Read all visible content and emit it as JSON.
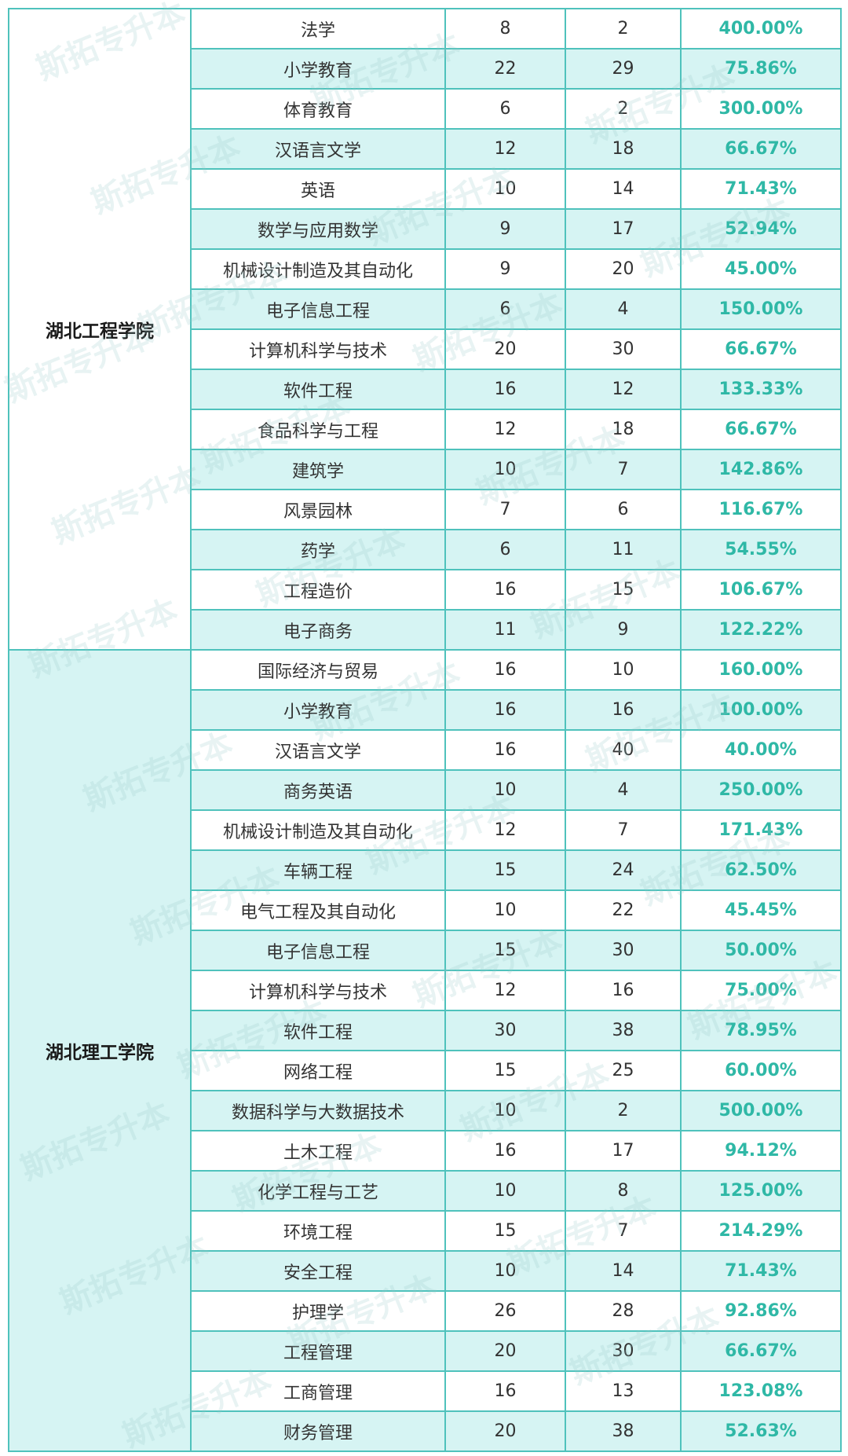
{
  "watermark": "斯拓专升本",
  "schools": [
    {
      "name": "湖北工程学院",
      "rows": [
        {
          "major": "法学",
          "a": "8",
          "b": "2",
          "pct": "400.00%"
        },
        {
          "major": "小学教育",
          "a": "22",
          "b": "29",
          "pct": "75.86%"
        },
        {
          "major": "体育教育",
          "a": "6",
          "b": "2",
          "pct": "300.00%"
        },
        {
          "major": "汉语言文学",
          "a": "12",
          "b": "18",
          "pct": "66.67%"
        },
        {
          "major": "英语",
          "a": "10",
          "b": "14",
          "pct": "71.43%"
        },
        {
          "major": "数学与应用数学",
          "a": "9",
          "b": "17",
          "pct": "52.94%"
        },
        {
          "major": "机械设计制造及其自动化",
          "a": "9",
          "b": "20",
          "pct": "45.00%"
        },
        {
          "major": "电子信息工程",
          "a": "6",
          "b": "4",
          "pct": "150.00%"
        },
        {
          "major": "计算机科学与技术",
          "a": "20",
          "b": "30",
          "pct": "66.67%"
        },
        {
          "major": "软件工程",
          "a": "16",
          "b": "12",
          "pct": "133.33%"
        },
        {
          "major": "食品科学与工程",
          "a": "12",
          "b": "18",
          "pct": "66.67%"
        },
        {
          "major": "建筑学",
          "a": "10",
          "b": "7",
          "pct": "142.86%"
        },
        {
          "major": "风景园林",
          "a": "7",
          "b": "6",
          "pct": "116.67%"
        },
        {
          "major": "药学",
          "a": "6",
          "b": "11",
          "pct": "54.55%"
        },
        {
          "major": "工程造价",
          "a": "16",
          "b": "15",
          "pct": "106.67%"
        },
        {
          "major": "电子商务",
          "a": "11",
          "b": "9",
          "pct": "122.22%"
        }
      ]
    },
    {
      "name": "湖北理工学院",
      "rows": [
        {
          "major": "国际经济与贸易",
          "a": "16",
          "b": "10",
          "pct": "160.00%"
        },
        {
          "major": "小学教育",
          "a": "16",
          "b": "16",
          "pct": "100.00%"
        },
        {
          "major": "汉语言文学",
          "a": "16",
          "b": "40",
          "pct": "40.00%"
        },
        {
          "major": "商务英语",
          "a": "10",
          "b": "4",
          "pct": "250.00%"
        },
        {
          "major": "机械设计制造及其自动化",
          "a": "12",
          "b": "7",
          "pct": "171.43%"
        },
        {
          "major": "车辆工程",
          "a": "15",
          "b": "24",
          "pct": "62.50%"
        },
        {
          "major": "电气工程及其自动化",
          "a": "10",
          "b": "22",
          "pct": "45.45%"
        },
        {
          "major": "电子信息工程",
          "a": "15",
          "b": "30",
          "pct": "50.00%"
        },
        {
          "major": "计算机科学与技术",
          "a": "12",
          "b": "16",
          "pct": "75.00%"
        },
        {
          "major": "软件工程",
          "a": "30",
          "b": "38",
          "pct": "78.95%"
        },
        {
          "major": "网络工程",
          "a": "15",
          "b": "25",
          "pct": "60.00%"
        },
        {
          "major": "数据科学与大数据技术",
          "a": "10",
          "b": "2",
          "pct": "500.00%"
        },
        {
          "major": "土木工程",
          "a": "16",
          "b": "17",
          "pct": "94.12%"
        },
        {
          "major": "化学工程与工艺",
          "a": "10",
          "b": "8",
          "pct": "125.00%"
        },
        {
          "major": "环境工程",
          "a": "15",
          "b": "7",
          "pct": "214.29%"
        },
        {
          "major": "安全工程",
          "a": "10",
          "b": "14",
          "pct": "71.43%"
        },
        {
          "major": "护理学",
          "a": "26",
          "b": "28",
          "pct": "92.86%"
        },
        {
          "major": "工程管理",
          "a": "20",
          "b": "30",
          "pct": "66.67%"
        },
        {
          "major": "工商管理",
          "a": "16",
          "b": "13",
          "pct": "123.08%"
        },
        {
          "major": "财务管理",
          "a": "20",
          "b": "38",
          "pct": "52.63%"
        }
      ]
    }
  ]
}
